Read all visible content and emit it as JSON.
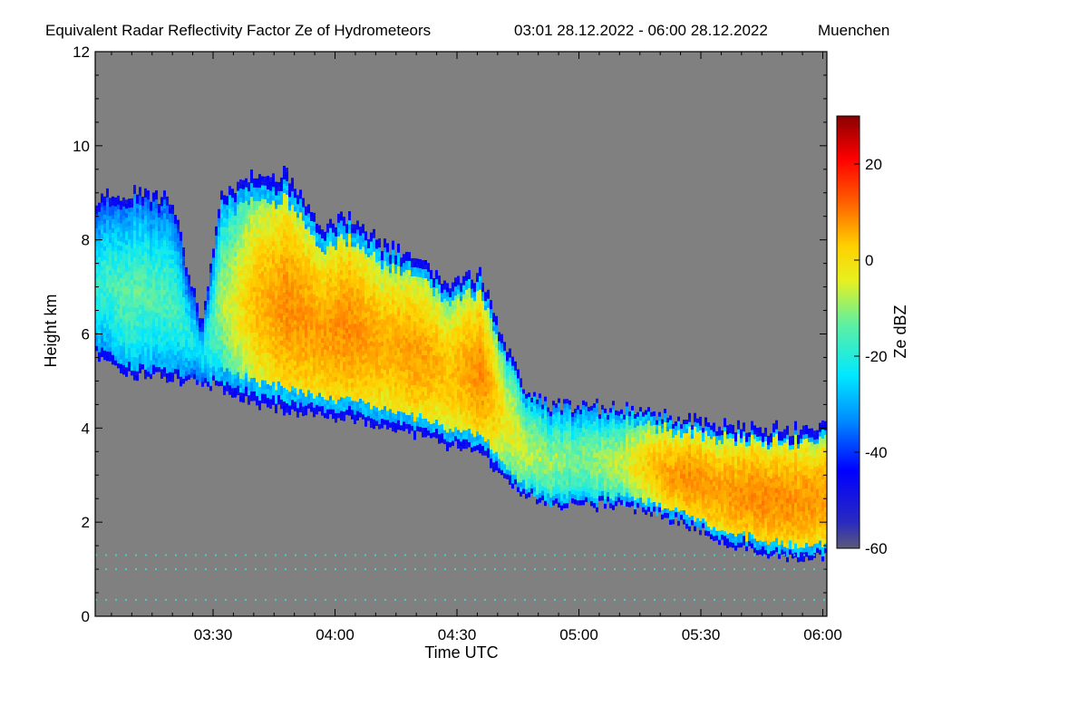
{
  "chart_data": {
    "type": "heatmap",
    "title": "Equivalent Radar Reflectivity Factor Ze of Hydrometeors",
    "time_range": "03:01 28.12.2022 - 06:00 28.12.2022",
    "location": "Muenchen",
    "xlabel": "Time UTC",
    "ylabel": "Height km",
    "xlim_minutes": [
      181,
      361
    ],
    "ylim": [
      0,
      12
    ],
    "x_ticks": [
      {
        "minute": 210,
        "label": "03:30"
      },
      {
        "minute": 240,
        "label": "04:00"
      },
      {
        "minute": 270,
        "label": "04:30"
      },
      {
        "minute": 300,
        "label": "05:00"
      },
      {
        "minute": 330,
        "label": "05:30"
      },
      {
        "minute": 360,
        "label": "06:00"
      }
    ],
    "y_ticks": [
      0,
      2,
      4,
      6,
      8,
      10,
      12
    ],
    "colorbar": {
      "label": "Ze dBZ",
      "range": [
        -60,
        30
      ],
      "ticks": [
        20,
        0,
        -20,
        -40,
        -60
      ]
    },
    "no_data_color": "#808080",
    "cloud_layer": {
      "minutes": [
        181,
        190,
        200,
        207,
        212,
        220,
        228,
        236,
        244,
        252,
        260,
        268,
        276,
        282,
        287,
        292,
        300,
        310,
        320,
        327,
        334,
        342,
        350,
        361
      ],
      "top_km": [
        8.9,
        9.0,
        8.9,
        6.2,
        8.9,
        9.4,
        9.4,
        8.3,
        8.5,
        7.9,
        7.6,
        7.0,
        7.3,
        5.8,
        4.8,
        4.5,
        4.5,
        4.4,
        4.3,
        4.2,
        4.1,
        4.0,
        4.0,
        4.0
      ],
      "base_km": [
        5.6,
        5.2,
        5.1,
        5.0,
        4.9,
        4.6,
        4.4,
        4.3,
        4.2,
        4.0,
        3.9,
        3.7,
        3.5,
        3.0,
        2.6,
        2.4,
        2.4,
        2.4,
        2.2,
        2.0,
        1.7,
        1.5,
        1.3,
        1.3
      ],
      "peak_dbz": [
        -18,
        -14,
        -16,
        -22,
        -10,
        2,
        8,
        6,
        8,
        4,
        6,
        2,
        8,
        -4,
        -8,
        -10,
        -12,
        -8,
        4,
        8,
        6,
        8,
        8,
        6
      ]
    },
    "clutter_lines_km": [
      1.3,
      1.0,
      0.35
    ]
  }
}
